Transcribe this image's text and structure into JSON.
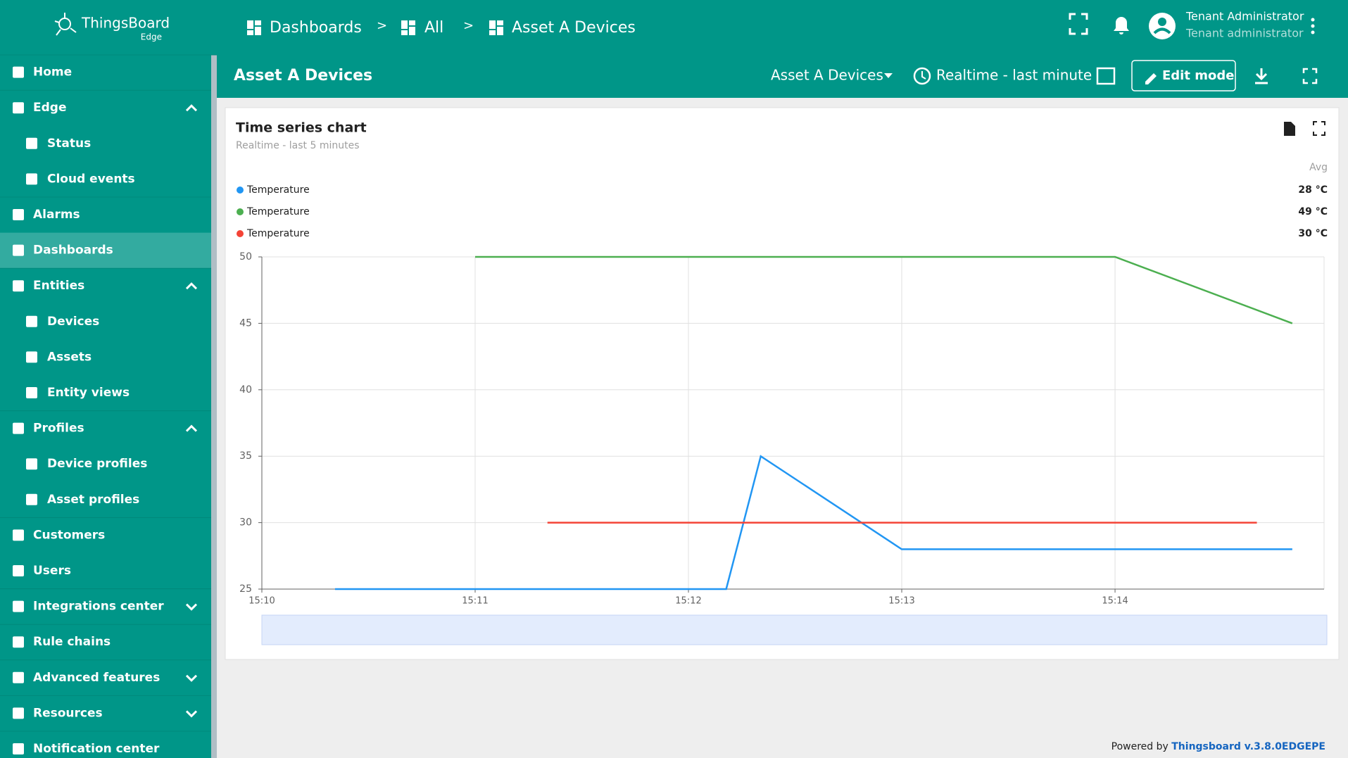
{
  "header": {
    "logo": "ThingsBoard",
    "logo_sub": "Edge",
    "breadcrumbs": [
      "Dashboards",
      "All",
      "Asset A Devices"
    ],
    "separators": [
      ">",
      ">"
    ],
    "user_name": "Tenant Administrator",
    "user_role": "Tenant administrator"
  },
  "toolbar": {
    "title": "Asset A Devices",
    "state": "Asset A Devices",
    "timewindow": "Realtime - last minute",
    "edit_button": "Edit mode"
  },
  "sidebar": [
    {
      "label": "Home"
    },
    {
      "label": "Edge",
      "children": [
        {
          "label": "Status"
        },
        {
          "label": "Cloud events"
        }
      ]
    },
    {
      "label": "Alarms"
    },
    {
      "label": "Dashboards",
      "active": true
    },
    {
      "label": "Entities",
      "children": [
        {
          "label": "Devices"
        },
        {
          "label": "Assets"
        },
        {
          "label": "Entity views"
        }
      ]
    },
    {
      "label": "Profiles",
      "children": [
        {
          "label": "Device profiles"
        },
        {
          "label": "Asset profiles"
        }
      ]
    },
    {
      "label": "Customers"
    },
    {
      "label": "Users"
    },
    {
      "label": "Integrations center",
      "children": []
    },
    {
      "label": "Rule chains"
    },
    {
      "label": "Advanced features",
      "children": []
    },
    {
      "label": "Resources",
      "children": []
    },
    {
      "label": "Notification center"
    }
  ],
  "widget": {
    "title": "Time series chart",
    "subtitle": "Realtime - last 5 minutes",
    "legend_header": "Avg"
  },
  "chart_data": {
    "type": "line",
    "xlim": [
      0,
      4.98
    ],
    "xticks": [
      {
        "value": 0,
        "label": "15:10"
      },
      {
        "value": 1,
        "label": "15:11"
      },
      {
        "value": 2,
        "label": "15:12"
      },
      {
        "value": 3,
        "label": "15:13"
      },
      {
        "value": 4,
        "label": "15:14"
      }
    ],
    "ylim": [
      25,
      50
    ],
    "yticks": [
      25,
      30,
      35,
      40,
      45,
      50
    ],
    "grid": true,
    "series": [
      {
        "name": "Temperature",
        "color": "#2196f3",
        "x": [
          0.343,
          2.177,
          2.339,
          3.0,
          4.831
        ],
        "values": [
          25,
          25,
          35,
          28,
          28
        ],
        "avg_label": "28 °C"
      },
      {
        "name": "Temperature",
        "color": "#4caf50",
        "x": [
          1.0,
          4.0,
          4.831
        ],
        "values": [
          50,
          50,
          45
        ],
        "avg_label": "49 °C"
      },
      {
        "name": "Temperature",
        "color": "#f44336",
        "x": [
          1.339,
          4.665
        ],
        "values": [
          30,
          30
        ],
        "avg_label": "30 °C"
      }
    ]
  },
  "footer": {
    "prefix": "Powered by",
    "link": "Thingsboard v.3.8.0EDGEPE"
  }
}
